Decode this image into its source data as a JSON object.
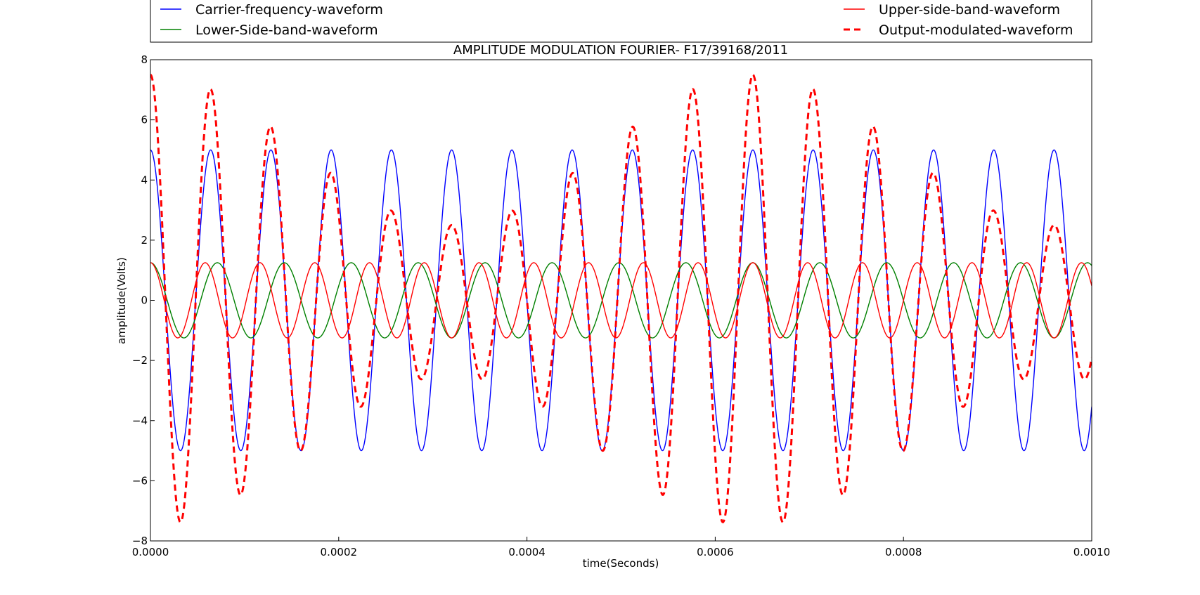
{
  "chart_data": {
    "type": "line",
    "title": "AMPLITUDE MODULATION FOURIER- F17/39168/2011",
    "xlabel": "time(Seconds)",
    "ylabel": "amplitude(Volts)",
    "xlim": [
      0,
      0.001
    ],
    "ylim": [
      -8,
      8
    ],
    "x_ticks": [
      "0.0000",
      "0.0002",
      "0.0004",
      "0.0006",
      "0.0008",
      "0.0010"
    ],
    "y_ticks": [
      "−8",
      "−6",
      "−4",
      "−2",
      "0",
      "2",
      "4",
      "6",
      "8"
    ],
    "grid": false,
    "legend_position": "top",
    "series": [
      {
        "name": "Carrier-frequency-waveform",
        "function": "cosine",
        "amplitude": 5.0,
        "frequency_hz": 15625,
        "color": "#0000ff",
        "style": "solid"
      },
      {
        "name": "Lower-Side-band-waveform",
        "function": "cosine",
        "amplitude": 1.25,
        "frequency_hz": 14063,
        "color": "#008000",
        "style": "solid"
      },
      {
        "name": "Upper-side-band-waveform",
        "function": "cosine",
        "amplitude": 1.25,
        "frequency_hz": 17187,
        "color": "#ff0000",
        "style": "solid"
      },
      {
        "name": "Output-modulated-waveform",
        "function": "sum",
        "components": [
          "Carrier-frequency-waveform",
          "Lower-Side-band-waveform",
          "Upper-side-band-waveform"
        ],
        "color": "#ff0000",
        "style": "dashed"
      }
    ]
  }
}
